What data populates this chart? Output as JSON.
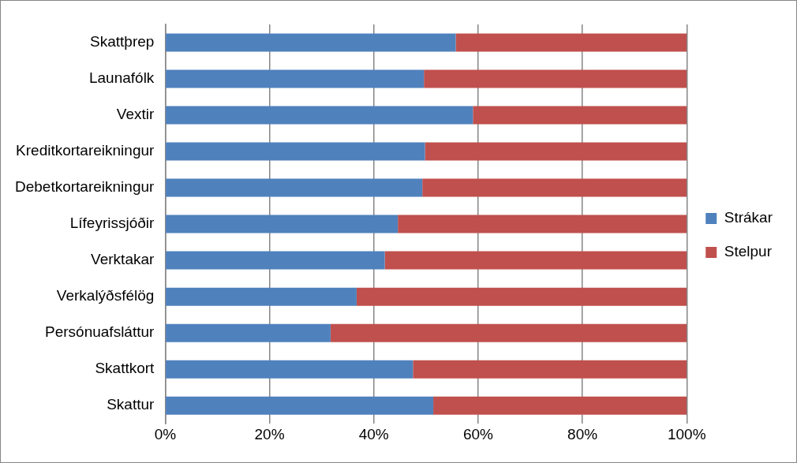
{
  "chart_data": {
    "type": "bar",
    "orientation": "horizontal",
    "stacked": true,
    "categories": [
      "Skattþrep",
      "Launafólk",
      "Vextir",
      "Kreditkortareikningur",
      "Debetkortareikningur",
      "Lífeyrissjóðir",
      "Verktakar",
      "Verkalýðsfélög",
      "Persónuafsláttur",
      "Skattkort",
      "Skattur"
    ],
    "series": [
      {
        "name": "Strákar",
        "color": "#4f81bd",
        "values": [
          55.7,
          49.6,
          59.0,
          49.8,
          49.3,
          44.6,
          42.1,
          36.7,
          31.7,
          47.5,
          51.4
        ]
      },
      {
        "name": "Stelpur",
        "color": "#c0504d",
        "values": [
          44.3,
          50.4,
          41.0,
          50.2,
          50.7,
          55.4,
          57.9,
          63.3,
          68.3,
          52.5,
          48.6
        ]
      }
    ],
    "xlim": [
      0,
      100
    ],
    "xticks": [
      {
        "value": 0,
        "label": "0%"
      },
      {
        "value": 20,
        "label": "20%"
      },
      {
        "value": 40,
        "label": "40%"
      },
      {
        "value": 60,
        "label": "60%"
      },
      {
        "value": 80,
        "label": "80%"
      },
      {
        "value": 100,
        "label": "100%"
      }
    ],
    "grid": "x",
    "legend": "right"
  }
}
